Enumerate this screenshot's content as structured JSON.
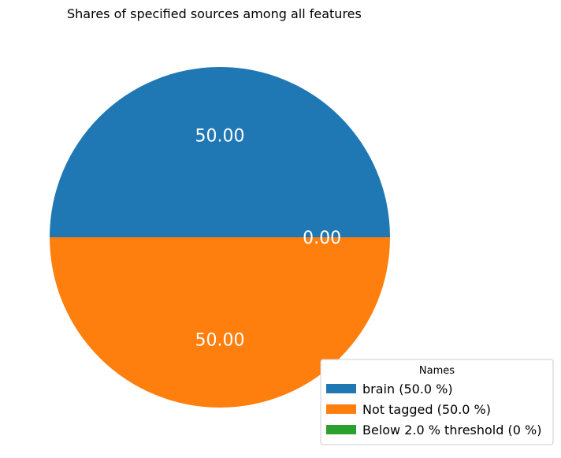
{
  "chart_data": {
    "type": "pie",
    "title": "Shares of specified sources among all features",
    "categories": [
      "brain",
      "Not tagged",
      "Below 2.0 % threshold"
    ],
    "values": [
      50.0,
      50.0,
      0.0
    ],
    "colors": [
      "#1f77b4",
      "#ff7f0e",
      "#2ca02c"
    ],
    "slice_labels": [
      "50.00",
      "50.00",
      "0.00"
    ],
    "legend": {
      "title": "Names",
      "placement": "bottom-right",
      "entries": [
        "brain (50.0 %)",
        "Not tagged (50.0 %)",
        "Below 2.0 % threshold (0 %)"
      ]
    }
  }
}
